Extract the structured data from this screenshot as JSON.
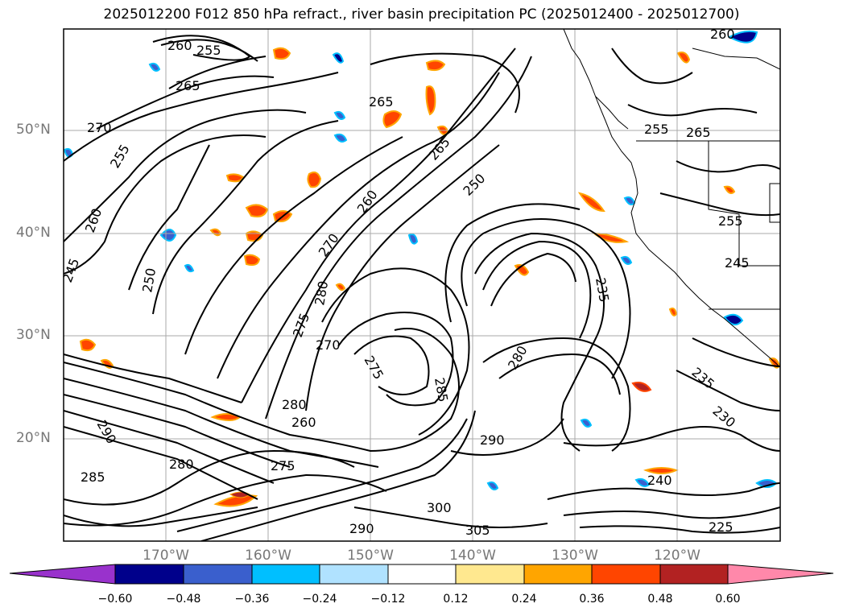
{
  "title": "2025012200 F012 850 hPa refract., river basin precipitation PC (2025012400 - 2025012700)",
  "lat_labels": [
    "50°N",
    "40°N",
    "30°N",
    "20°N"
  ],
  "lon_labels": [
    "170°W",
    "160°W",
    "150°W",
    "140°W",
    "130°W",
    "120°W"
  ],
  "contour_labels": [
    "260",
    "255",
    "265",
    "270",
    "255",
    "260",
    "245",
    "250",
    "265",
    "260",
    "270",
    "250",
    "280",
    "275",
    "270",
    "275",
    "285",
    "280",
    "260",
    "265",
    "290",
    "280",
    "285",
    "275",
    "280",
    "290",
    "300",
    "305",
    "290",
    "240",
    "235",
    "255",
    "265",
    "245",
    "255",
    "235",
    "225",
    "260",
    "230"
  ],
  "colorbar": {
    "colors": [
      "#9932CC",
      "#00008B",
      "#3A5FCD",
      "#00BFFF",
      "#B0E2FF",
      "#FFFFFF",
      "#FFE88F",
      "#FFA500",
      "#FF4500",
      "#B22222",
      "#FF88AA"
    ],
    "ticks": [
      "−0.60",
      "−0.48",
      "−0.36",
      "−0.24",
      "−0.12",
      "0.12",
      "0.24",
      "0.36",
      "0.48",
      "0.60"
    ]
  },
  "colors": {
    "grid": "#aaaaaa",
    "axis_label": "#777777",
    "contour": "#000000",
    "coast": "#000000"
  }
}
